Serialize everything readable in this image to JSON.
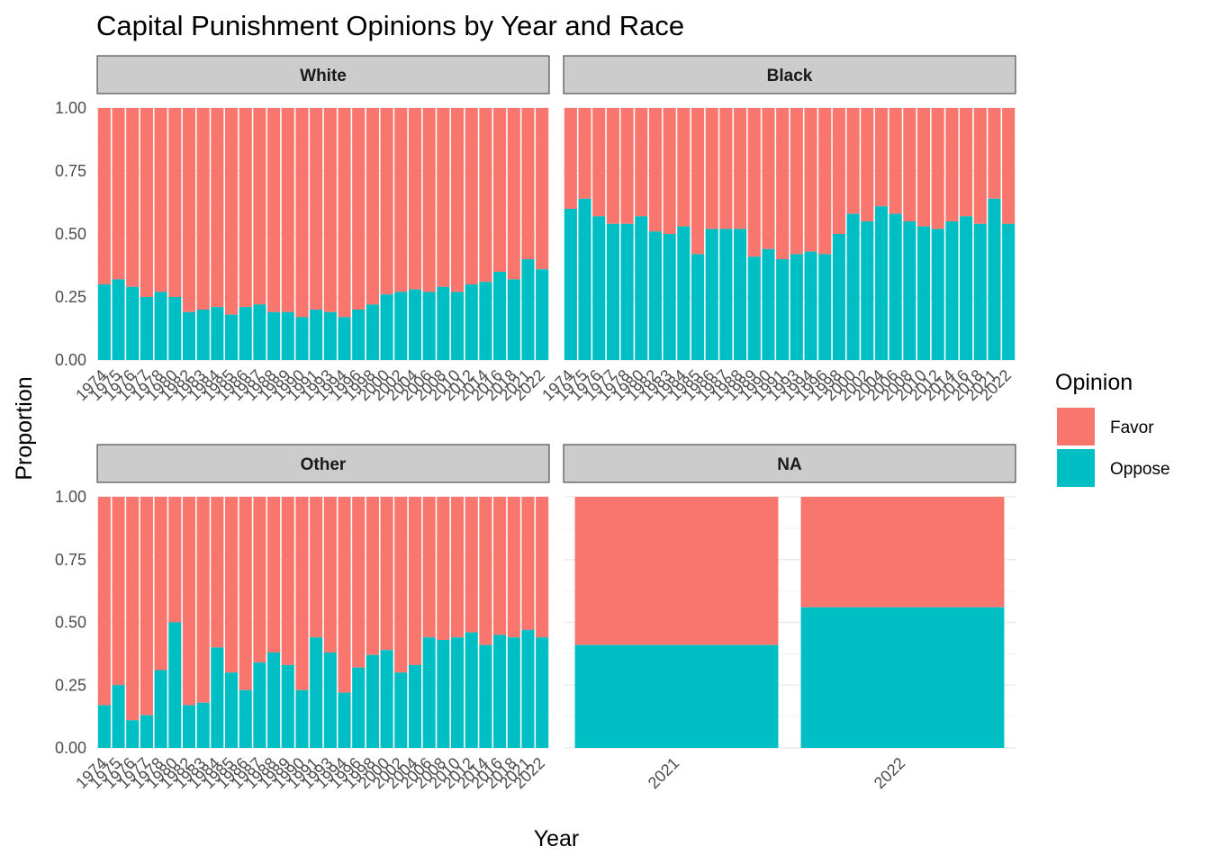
{
  "chart_data": {
    "type": "bar",
    "stacked": true,
    "title": "Capital Punishment Opinions by Year and Race",
    "xlabel": "Year",
    "ylabel": "Proportion",
    "ylim": [
      0,
      1
    ],
    "yticks": [
      "0.00",
      "0.25",
      "0.50",
      "0.75",
      "1.00"
    ],
    "legend": {
      "title": "Opinion",
      "position": "right",
      "entries": [
        {
          "name": "Favor",
          "color": "#F8766D"
        },
        {
          "name": "Oppose",
          "color": "#00BFC4"
        }
      ]
    },
    "years": [
      "1974",
      "1975",
      "1976",
      "1977",
      "1978",
      "1980",
      "1982",
      "1983",
      "1984",
      "1985",
      "1986",
      "1987",
      "1988",
      "1989",
      "1990",
      "1991",
      "1993",
      "1994",
      "1996",
      "1998",
      "2000",
      "2002",
      "2004",
      "2006",
      "2008",
      "2010",
      "2012",
      "2014",
      "2016",
      "2018",
      "2021",
      "2022"
    ],
    "panels": [
      {
        "name": "White",
        "categories": [
          "1974",
          "1975",
          "1976",
          "1977",
          "1978",
          "1980",
          "1982",
          "1983",
          "1984",
          "1985",
          "1986",
          "1987",
          "1988",
          "1989",
          "1990",
          "1991",
          "1993",
          "1994",
          "1996",
          "1998",
          "2000",
          "2002",
          "2004",
          "2006",
          "2008",
          "2010",
          "2012",
          "2014",
          "2016",
          "2018",
          "2021",
          "2022"
        ],
        "oppose": [
          0.3,
          0.32,
          0.29,
          0.25,
          0.27,
          0.25,
          0.19,
          0.2,
          0.21,
          0.18,
          0.21,
          0.22,
          0.19,
          0.19,
          0.17,
          0.2,
          0.19,
          0.17,
          0.2,
          0.22,
          0.26,
          0.27,
          0.28,
          0.27,
          0.29,
          0.27,
          0.3,
          0.31,
          0.35,
          0.32,
          0.4,
          0.36
        ]
      },
      {
        "name": "Black",
        "categories": [
          "1974",
          "1975",
          "1976",
          "1977",
          "1978",
          "1980",
          "1982",
          "1983",
          "1984",
          "1985",
          "1986",
          "1987",
          "1988",
          "1989",
          "1990",
          "1991",
          "1993",
          "1994",
          "1996",
          "1998",
          "2000",
          "2002",
          "2004",
          "2006",
          "2008",
          "2010",
          "2012",
          "2014",
          "2016",
          "2018",
          "2021",
          "2022"
        ],
        "oppose": [
          0.6,
          0.64,
          0.57,
          0.54,
          0.54,
          0.57,
          0.51,
          0.5,
          0.53,
          0.42,
          0.52,
          0.52,
          0.52,
          0.41,
          0.44,
          0.4,
          0.42,
          0.43,
          0.42,
          0.5,
          0.58,
          0.55,
          0.61,
          0.58,
          0.55,
          0.53,
          0.52,
          0.55,
          0.57,
          0.54,
          0.64,
          0.54
        ]
      },
      {
        "name": "Other",
        "categories": [
          "1974",
          "1975",
          "1976",
          "1977",
          "1978",
          "1980",
          "1982",
          "1983",
          "1984",
          "1985",
          "1986",
          "1987",
          "1988",
          "1989",
          "1990",
          "1991",
          "1993",
          "1994",
          "1996",
          "1998",
          "2000",
          "2002",
          "2004",
          "2006",
          "2008",
          "2010",
          "2012",
          "2014",
          "2016",
          "2018",
          "2021",
          "2022"
        ],
        "oppose": [
          0.17,
          0.25,
          0.11,
          0.13,
          0.31,
          0.5,
          0.17,
          0.18,
          0.4,
          0.3,
          0.23,
          0.34,
          0.38,
          0.33,
          0.23,
          0.44,
          0.38,
          0.22,
          0.32,
          0.37,
          0.39,
          0.3,
          0.33,
          0.44,
          0.43,
          0.44,
          0.46,
          0.41,
          0.45,
          0.44,
          0.47,
          0.44
        ]
      },
      {
        "name": "NA",
        "categories": [
          "2021",
          "2022"
        ],
        "oppose": [
          0.41,
          0.56
        ]
      }
    ]
  }
}
